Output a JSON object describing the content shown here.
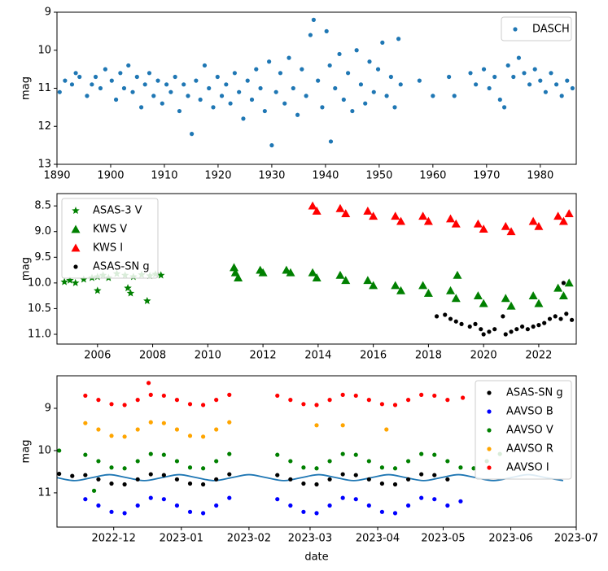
{
  "chart_data": [
    {
      "type": "scatter",
      "ylabel": "mag",
      "xlim": [
        1890,
        1986.7
      ],
      "ylim": [
        9,
        13
      ],
      "y_inverted": true,
      "xticks": [
        1890,
        1900,
        1910,
        1920,
        1930,
        1940,
        1950,
        1960,
        1970,
        1980
      ],
      "yticks": [
        9,
        10,
        11,
        12,
        13
      ],
      "legend": "upper right",
      "series": [
        {
          "name": "DASCH",
          "color": "#1f77b4",
          "marker": "circle",
          "x": [
            1890.5,
            1891.5,
            1892.8,
            1893.5,
            1894.2,
            1895.6,
            1896.5,
            1897.2,
            1898.1,
            1899.0,
            1900.2,
            1901.0,
            1901.8,
            1902.5,
            1903.3,
            1904.1,
            1904.9,
            1905.7,
            1906.4,
            1907.2,
            1908.0,
            1908.8,
            1909.6,
            1910.4,
            1911.2,
            1912.0,
            1912.8,
            1913.6,
            1914.4,
            1915.1,
            1915.9,
            1916.7,
            1917.5,
            1918.3,
            1919.1,
            1919.9,
            1920.7,
            1921.5,
            1922.3,
            1923.1,
            1923.9,
            1924.7,
            1925.5,
            1926.3,
            1927.1,
            1927.9,
            1928.7,
            1929.5,
            1930.0,
            1930.8,
            1931.6,
            1932.4,
            1933.2,
            1934.0,
            1934.8,
            1935.6,
            1936.4,
            1937.2,
            1937.8,
            1938.6,
            1939.4,
            1940.2,
            1940.8,
            1941.0,
            1941.8,
            1942.6,
            1943.4,
            1944.2,
            1945.0,
            1945.8,
            1946.6,
            1947.4,
            1948.2,
            1949.0,
            1949.8,
            1950.6,
            1951.4,
            1952.2,
            1952.9,
            1953.6,
            1954.0,
            1957.5,
            1960.0,
            1963.0,
            1964.0,
            1967.0,
            1968.0,
            1969.5,
            1970.5,
            1971.5,
            1972.5,
            1973.3,
            1974.0,
            1975.0,
            1976.0,
            1977.0,
            1978.0,
            1979.0,
            1980.0,
            1981.0,
            1982.0,
            1983.0,
            1984.0,
            1985.0,
            1986.0
          ],
          "values": [
            11.1,
            10.8,
            10.9,
            10.6,
            10.7,
            11.2,
            10.9,
            10.7,
            11.0,
            10.5,
            10.8,
            11.3,
            10.6,
            11.0,
            10.4,
            11.1,
            10.7,
            11.5,
            10.9,
            10.6,
            11.2,
            10.8,
            11.4,
            10.9,
            11.1,
            10.7,
            11.6,
            10.9,
            11.2,
            12.2,
            10.8,
            11.3,
            10.4,
            11.0,
            11.5,
            10.7,
            11.2,
            10.9,
            11.4,
            10.6,
            11.1,
            11.8,
            10.8,
            11.3,
            10.5,
            11.0,
            11.6,
            10.3,
            12.5,
            11.1,
            10.6,
            11.4,
            10.2,
            11.0,
            11.7,
            10.5,
            11.2,
            9.6,
            9.2,
            10.8,
            11.5,
            9.5,
            10.4,
            12.4,
            11.0,
            10.1,
            11.3,
            10.6,
            11.6,
            10.0,
            10.9,
            11.4,
            10.3,
            11.1,
            10.5,
            9.8,
            11.2,
            10.7,
            11.5,
            9.7,
            10.9,
            10.8,
            11.2,
            10.7,
            11.2,
            10.6,
            10.9,
            10.5,
            11.0,
            10.7,
            11.3,
            11.5,
            10.4,
            10.7,
            10.2,
            10.6,
            10.9,
            10.5,
            10.8,
            11.1,
            10.6,
            10.9,
            11.2,
            10.8,
            11.0
          ]
        }
      ]
    },
    {
      "type": "scatter",
      "ylabel": "mag",
      "xlim": [
        2004.53,
        2023.36
      ],
      "ylim": [
        8.26,
        11.19
      ],
      "y_inverted": true,
      "xticks": [
        2006,
        2008,
        2010,
        2012,
        2014,
        2016,
        2018,
        2020,
        2022
      ],
      "yticks": [
        8.5,
        {
          "value": 9,
          "label": "9.0"
        },
        9.5,
        {
          "value": 10,
          "label": "10.0"
        },
        10.5,
        {
          "value": 11,
          "label": "11.0"
        }
      ],
      "legend": "upper left",
      "series": [
        {
          "name": "ASAS-3 V",
          "color": "#008000",
          "marker": "star",
          "x": [
            2004.8,
            2005.0,
            2005.2,
            2005.5,
            2005.8,
            2006.0,
            2006.0,
            2006.2,
            2006.4,
            2006.7,
            2007.0,
            2007.1,
            2007.2,
            2007.3,
            2007.6,
            2007.8,
            2007.9,
            2008.1,
            2008.3
          ],
          "values": [
            9.98,
            9.95,
            10.0,
            9.93,
            9.9,
            9.88,
            10.15,
            9.85,
            9.9,
            9.82,
            9.85,
            10.1,
            10.2,
            9.88,
            9.84,
            10.35,
            9.86,
            9.83,
            9.85
          ]
        },
        {
          "name": "KWS V",
          "color": "#008000",
          "marker": "triangle",
          "x": [
            2010.95,
            2011.0,
            2011.1,
            2011.9,
            2012.0,
            2012.85,
            2013.0,
            2013.8,
            2013.95,
            2014.8,
            2015.0,
            2015.8,
            2016.0,
            2016.8,
            2017.0,
            2017.8,
            2018.0,
            2018.8,
            2019.0,
            2019.05,
            2019.8,
            2020.0,
            2020.8,
            2021.0,
            2021.8,
            2022.0,
            2022.7,
            2022.9,
            2023.1
          ],
          "values": [
            9.7,
            9.8,
            9.9,
            9.75,
            9.8,
            9.75,
            9.8,
            9.8,
            9.9,
            9.85,
            9.95,
            9.95,
            10.05,
            10.05,
            10.15,
            10.05,
            10.2,
            10.15,
            10.3,
            9.85,
            10.25,
            10.4,
            10.3,
            10.45,
            10.25,
            10.4,
            10.1,
            10.25,
            10.0
          ]
        },
        {
          "name": "KWS I",
          "color": "#ff0000",
          "marker": "triangle",
          "x": [
            2013.8,
            2013.95,
            2014.8,
            2015.0,
            2015.8,
            2016.0,
            2016.8,
            2017.0,
            2017.8,
            2018.0,
            2018.8,
            2019.0,
            2019.8,
            2020.0,
            2020.8,
            2021.0,
            2021.8,
            2022.0,
            2022.7,
            2022.9,
            2023.1
          ],
          "values": [
            8.5,
            8.6,
            8.55,
            8.65,
            8.6,
            8.7,
            8.7,
            8.8,
            8.7,
            8.8,
            8.75,
            8.85,
            8.85,
            8.95,
            8.9,
            9.0,
            8.8,
            8.9,
            8.7,
            8.8,
            8.65
          ]
        },
        {
          "name": "ASAS-SN g",
          "color": "#000000",
          "marker": "circle",
          "x": [
            2018.3,
            2018.6,
            2018.8,
            2019.0,
            2019.2,
            2019.5,
            2019.7,
            2019.9,
            2020.0,
            2020.2,
            2020.4,
            2020.7,
            2020.8,
            2021.0,
            2021.2,
            2021.4,
            2021.6,
            2021.8,
            2022.0,
            2022.2,
            2022.4,
            2022.6,
            2022.8,
            2022.9,
            2023.0,
            2023.2
          ],
          "values": [
            10.65,
            10.62,
            10.7,
            10.75,
            10.8,
            10.85,
            10.8,
            10.9,
            11.0,
            10.95,
            10.9,
            10.65,
            11.0,
            10.95,
            10.9,
            10.85,
            10.9,
            10.85,
            10.82,
            10.78,
            10.7,
            10.65,
            10.7,
            10.0,
            10.6,
            10.72
          ]
        }
      ]
    },
    {
      "type": "scatter",
      "xlabel": "date",
      "ylabel": "mag",
      "xlim": [
        "2022-11-05",
        "2023-07-01"
      ],
      "ylim": [
        8.23,
        11.81
      ],
      "y_inverted": true,
      "xticks": [
        "2022-12",
        "2023-01",
        "2023-02",
        "2023-03",
        "2023-04",
        "2023-05",
        "2023-06",
        "2023-07"
      ],
      "yticks": [
        9,
        10,
        11
      ],
      "legend": "upper right",
      "series": [
        {
          "color": "#1f77b4",
          "marker": "line",
          "x": [
            "2022-11-05",
            "2022-11-13",
            "2022-11-21",
            "2022-11-29",
            "2022-12-07",
            "2022-12-15",
            "2022-12-23",
            "2022-12-31",
            "2023-01-08",
            "2023-01-16",
            "2023-01-24",
            "2023-02-01",
            "2023-02-09",
            "2023-02-17",
            "2023-02-25",
            "2023-03-05",
            "2023-03-13",
            "2023-03-21",
            "2023-03-29",
            "2023-04-06",
            "2023-04-14",
            "2023-04-22",
            "2023-04-30",
            "2023-05-08",
            "2023-05-16",
            "2023-05-24",
            "2023-06-01",
            "2023-06-09",
            "2023-06-17",
            "2023-06-25"
          ],
          "values": [
            10.64,
            10.71,
            10.64,
            10.57,
            10.64,
            10.71,
            10.64,
            10.57,
            10.64,
            10.71,
            10.64,
            10.57,
            10.64,
            10.71,
            10.64,
            10.57,
            10.64,
            10.71,
            10.64,
            10.57,
            10.64,
            10.71,
            10.64,
            10.57,
            10.64,
            10.71,
            10.64,
            10.57,
            10.64,
            10.71
          ]
        },
        {
          "name": "ASAS-SN g",
          "color": "#000000",
          "marker": "circle",
          "x": [
            "2022-11-06",
            "2022-11-12",
            "2022-11-18",
            "2022-11-24",
            "2022-11-30",
            "2022-12-06",
            "2022-12-12",
            "2022-12-18",
            "2022-12-24",
            "2022-12-30",
            "2023-01-05",
            "2023-01-11",
            "2023-01-17",
            "2023-01-23",
            "2023-02-14",
            "2023-02-20",
            "2023-02-26",
            "2023-03-04",
            "2023-03-10",
            "2023-03-16",
            "2023-03-22",
            "2023-03-28",
            "2023-04-03",
            "2023-04-09",
            "2023-04-15",
            "2023-04-21",
            "2023-04-27",
            "2023-05-03"
          ],
          "values": [
            10.55,
            10.6,
            10.58,
            10.68,
            10.78,
            10.8,
            10.68,
            10.56,
            10.58,
            10.68,
            10.78,
            10.8,
            10.68,
            10.56,
            10.58,
            10.68,
            10.78,
            10.8,
            10.68,
            10.56,
            10.58,
            10.68,
            10.78,
            10.8,
            10.68,
            10.56,
            10.58,
            10.68
          ]
        },
        {
          "name": "AAVSO B",
          "color": "#0000ff",
          "marker": "circle",
          "x": [
            "2022-11-18",
            "2022-11-24",
            "2022-11-30",
            "2022-12-06",
            "2022-12-12",
            "2022-12-18",
            "2022-12-24",
            "2022-12-30",
            "2023-01-05",
            "2023-01-11",
            "2023-01-17",
            "2023-01-23",
            "2023-02-14",
            "2023-02-20",
            "2023-02-26",
            "2023-03-04",
            "2023-03-10",
            "2023-03-16",
            "2023-03-22",
            "2023-03-28",
            "2023-04-03",
            "2023-04-09",
            "2023-04-15",
            "2023-04-21",
            "2023-04-27",
            "2023-05-03",
            "2023-05-09"
          ],
          "values": [
            11.15,
            11.3,
            11.45,
            11.48,
            11.3,
            11.12,
            11.15,
            11.3,
            11.45,
            11.48,
            11.3,
            11.12,
            11.15,
            11.3,
            11.45,
            11.48,
            11.3,
            11.12,
            11.15,
            11.3,
            11.45,
            11.48,
            11.3,
            11.12,
            11.15,
            11.3,
            11.2
          ]
        },
        {
          "name": "AAVSO V",
          "color": "#008000",
          "marker": "circle",
          "x": [
            "2022-11-06",
            "2022-11-22",
            "2022-11-18",
            "2022-11-24",
            "2022-11-30",
            "2022-12-06",
            "2022-12-12",
            "2022-12-18",
            "2022-12-24",
            "2022-12-30",
            "2023-01-05",
            "2023-01-11",
            "2023-01-17",
            "2023-01-23",
            "2023-02-14",
            "2023-02-20",
            "2023-02-26",
            "2023-03-04",
            "2023-03-10",
            "2023-03-16",
            "2023-03-22",
            "2023-03-28",
            "2023-04-03",
            "2023-04-09",
            "2023-04-15",
            "2023-04-21",
            "2023-04-27",
            "2023-05-03",
            "2023-05-09",
            "2023-05-15",
            "2023-05-21",
            "2023-05-27"
          ],
          "values": [
            10.0,
            10.95,
            10.1,
            10.25,
            10.4,
            10.42,
            10.25,
            10.08,
            10.1,
            10.25,
            10.4,
            10.42,
            10.25,
            10.08,
            10.1,
            10.25,
            10.4,
            10.42,
            10.25,
            10.08,
            10.1,
            10.25,
            10.4,
            10.42,
            10.25,
            10.08,
            10.1,
            10.25,
            10.4,
            10.42,
            10.25,
            10.08
          ]
        },
        {
          "name": "AAVSO R",
          "color": "#ffa500",
          "marker": "circle",
          "x": [
            "2022-11-18",
            "2022-11-24",
            "2022-11-30",
            "2022-12-06",
            "2022-12-12",
            "2022-12-18",
            "2022-12-24",
            "2022-12-30",
            "2023-01-05",
            "2023-01-11",
            "2023-01-17",
            "2023-01-23",
            "2023-03-04",
            "2023-03-16",
            "2023-04-05"
          ],
          "values": [
            9.35,
            9.5,
            9.65,
            9.67,
            9.5,
            9.33,
            9.35,
            9.5,
            9.65,
            9.67,
            9.5,
            9.33,
            9.4,
            9.4,
            9.5
          ]
        },
        {
          "name": "AAVSO I",
          "color": "#ff0000",
          "marker": "circle",
          "x": [
            "2022-11-18",
            "2022-11-24",
            "2022-11-30",
            "2022-12-06",
            "2022-12-12",
            "2022-12-18",
            "2022-12-24",
            "2022-12-30",
            "2023-01-05",
            "2023-01-11",
            "2023-01-17",
            "2023-01-23",
            "2023-02-14",
            "2023-02-20",
            "2023-02-26",
            "2023-03-04",
            "2023-03-10",
            "2023-03-16",
            "2023-03-22",
            "2023-03-28",
            "2023-04-03",
            "2023-04-09",
            "2023-04-15",
            "2023-04-21",
            "2023-04-27",
            "2023-05-03",
            "2022-12-17",
            "2023-05-10"
          ],
          "values": [
            8.7,
            8.8,
            8.9,
            8.92,
            8.8,
            8.68,
            8.7,
            8.8,
            8.9,
            8.92,
            8.8,
            8.68,
            8.7,
            8.8,
            8.9,
            8.92,
            8.8,
            8.68,
            8.7,
            8.8,
            8.9,
            8.92,
            8.8,
            8.68,
            8.7,
            8.8,
            8.4,
            8.75
          ]
        }
      ]
    }
  ]
}
